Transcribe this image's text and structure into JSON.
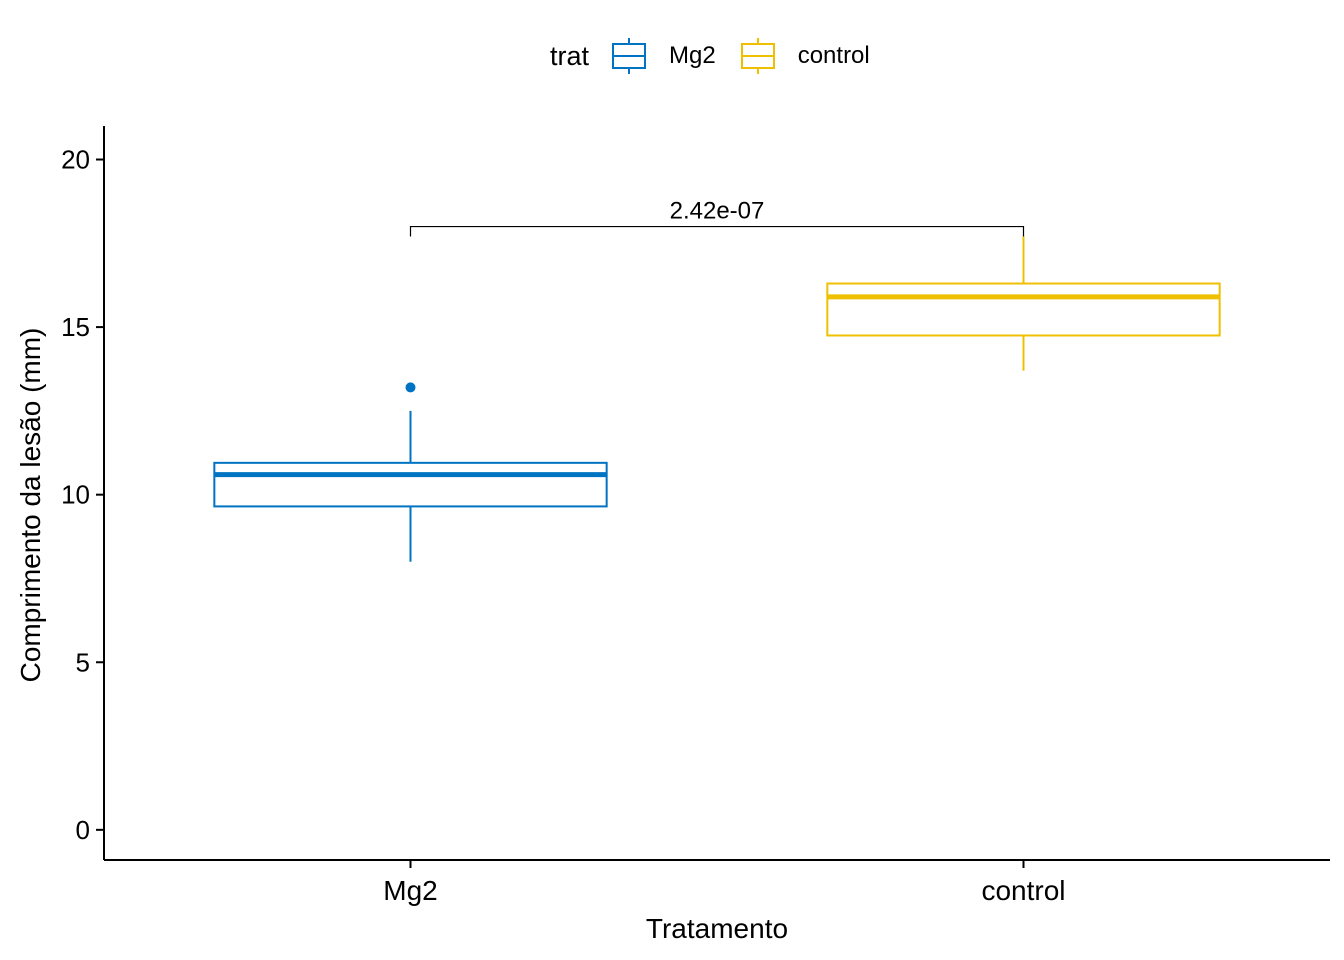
{
  "legend": {
    "title": "trat",
    "items": [
      {
        "label": "Mg2",
        "color": "#0073C2"
      },
      {
        "label": "control",
        "color": "#EFC000"
      }
    ]
  },
  "chart_data": {
    "type": "boxplot",
    "xlabel": "Tratamento",
    "ylabel": "Comprimento da lesão (mm)",
    "ylim": [
      -0.9,
      21.0
    ],
    "yticks": [
      0,
      5,
      10,
      15,
      20
    ],
    "categories": [
      "Mg2",
      "control"
    ],
    "boxes": [
      {
        "category": "Mg2",
        "color": "#0073C2",
        "whisker_low": 8.0,
        "q1": 9.65,
        "median": 10.6,
        "q3": 10.95,
        "whisker_high": 12.5,
        "outliers": [
          13.2
        ]
      },
      {
        "category": "control",
        "color": "#EFC000",
        "whisker_low": 13.7,
        "q1": 14.75,
        "median": 15.9,
        "q3": 16.3,
        "whisker_high": 17.7,
        "outliers": []
      }
    ],
    "comparison": {
      "from": "Mg2",
      "to": "control",
      "y": 18.0,
      "label": "2.42e-07"
    },
    "grid": false,
    "legend_position": "top"
  }
}
